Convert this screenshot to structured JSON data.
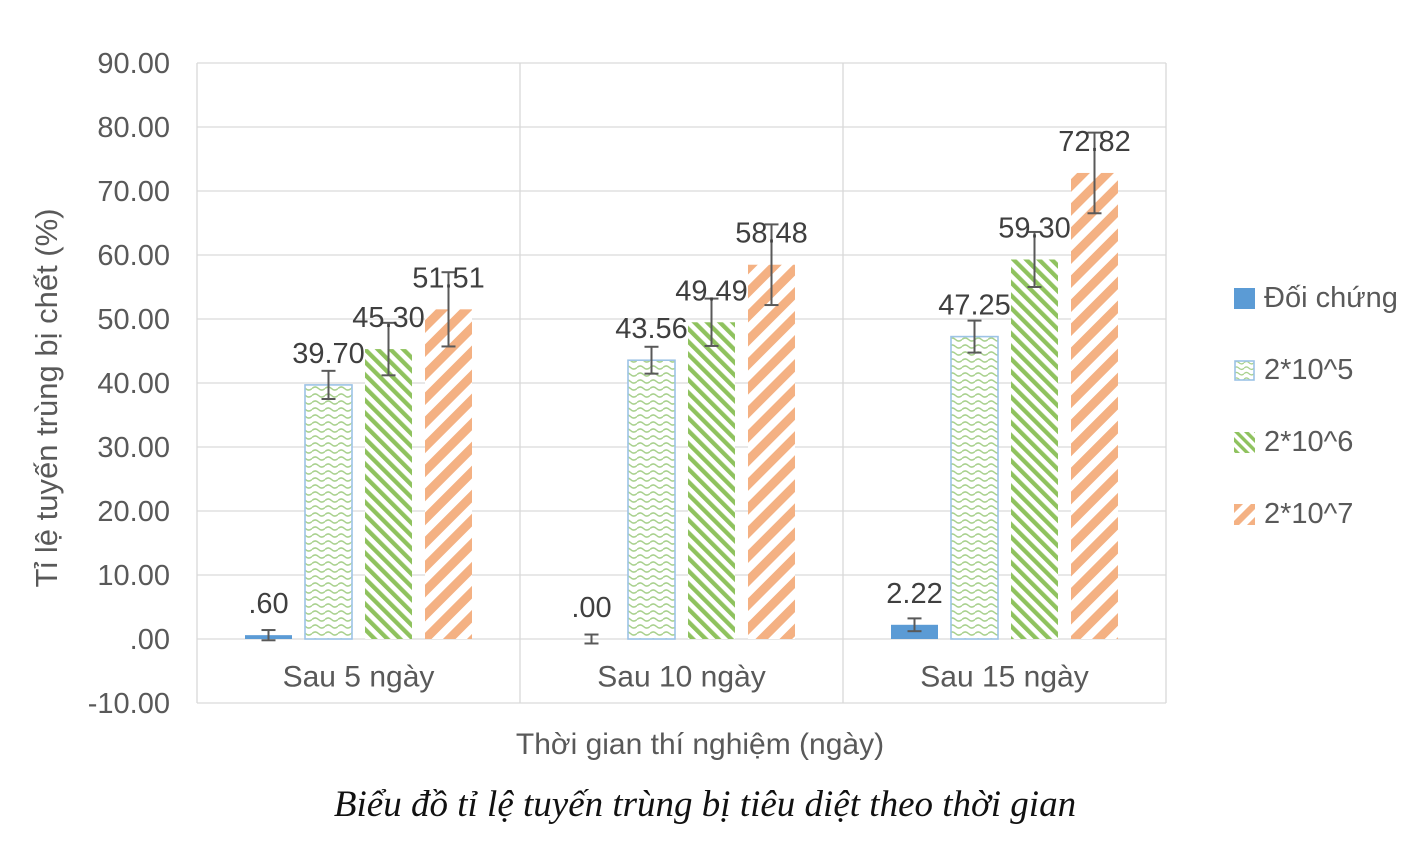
{
  "figure": {
    "caption": "Biểu đồ tỉ lệ tuyến trùng bị tiêu diệt theo thời gian"
  },
  "chart_data": {
    "type": "bar",
    "title": "",
    "xlabel": "Thời gian thí nghiệm (ngày)",
    "ylabel": "Tỉ lệ tuyến trùng bị chết (%)",
    "categories": [
      "Sau 5 ngày",
      "Sau 10 ngày",
      "Sau 15 ngày"
    ],
    "series": [
      {
        "name": "Đối chứng",
        "values": [
          0.6,
          0.0,
          2.22
        ],
        "value_labels": [
          ".60",
          ".00",
          "2.22"
        ],
        "error_bars": [
          0.8,
          0.7,
          1.0
        ],
        "fill_style": "solid",
        "color": "#5B9BD5"
      },
      {
        "name": "2*10^5",
        "values": [
          39.7,
          43.56,
          47.25
        ],
        "value_labels": [
          "39.70",
          "43.56",
          "47.25"
        ],
        "error_bars": [
          2.2,
          2.1,
          2.5
        ],
        "fill_style": "wave-pattern",
        "color": "#A9D18E",
        "border_color": "#9DC3E6"
      },
      {
        "name": "2*10^6",
        "values": [
          45.3,
          49.49,
          59.3
        ],
        "value_labels": [
          "45.30",
          "49.49",
          "59.30"
        ],
        "error_bars": [
          4.1,
          3.7,
          4.3
        ],
        "fill_style": "diagonal-up-stripes",
        "color": "#8FC25E"
      },
      {
        "name": "2*10^7",
        "values": [
          51.51,
          58.48,
          72.82
        ],
        "value_labels": [
          "51.51",
          "58.48",
          "72.82"
        ],
        "error_bars": [
          5.8,
          6.3,
          6.3
        ],
        "fill_style": "diagonal-down-stripes",
        "color": "#F4B183"
      }
    ],
    "ylim": [
      -10,
      90
    ],
    "ytick_step": 10,
    "ytick_labels": [
      "90.00",
      "80.00",
      "70.00",
      "60.00",
      "50.00",
      "40.00",
      "30.00",
      "20.00",
      "10.00",
      ".00",
      "-10.00"
    ],
    "grid": true,
    "legend_position": "right",
    "styles": {
      "gridline_color": "#D9D9D9",
      "axis_text_color": "#595959",
      "data_label_color": "#3F3F3F",
      "error_bar_color": "#595959",
      "caption_color": "#111111",
      "background": "#FFFFFF"
    }
  }
}
